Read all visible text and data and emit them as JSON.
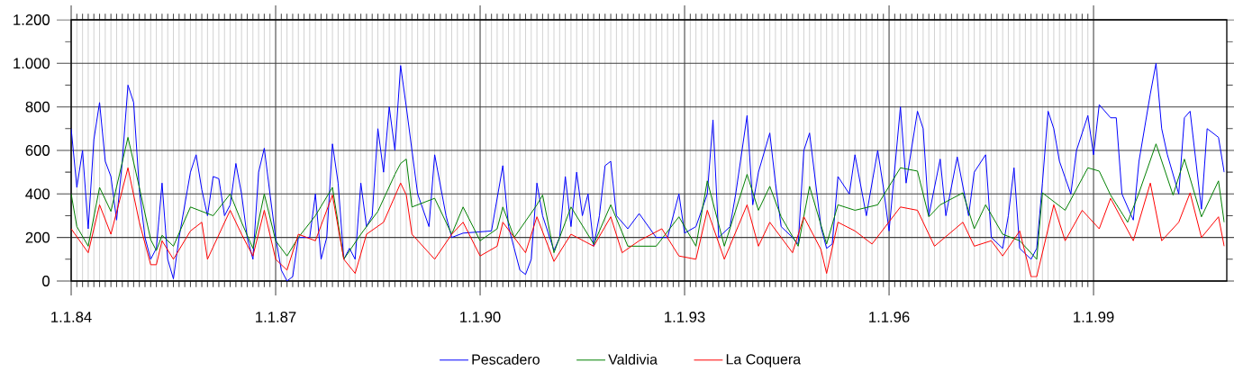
{
  "chart_data": {
    "type": "line",
    "xlim": [
      "1984-01-01",
      "2000-12-15"
    ],
    "ylim": [
      0,
      1200
    ],
    "xticks": [
      {
        "value": "1984-01-01",
        "label": "1.1.84"
      },
      {
        "value": "1987-01-01",
        "label": "1.1.87"
      },
      {
        "value": "1990-01-01",
        "label": "1.1.90"
      },
      {
        "value": "1993-01-01",
        "label": "1.1.93"
      },
      {
        "value": "1996-01-01",
        "label": "1.1.96"
      },
      {
        "value": "1999-01-01",
        "label": "1.1.99"
      }
    ],
    "yticks": [
      0,
      200,
      400,
      600,
      800,
      {
        "value": 1000,
        "label": "1.000"
      },
      {
        "value": 1200,
        "label": "1.200"
      }
    ],
    "grid": true,
    "legend": "bottom",
    "marker": "none",
    "line_style": "solid",
    "series": [
      {
        "name": "Pescadero",
        "color": "#0000ff",
        "x": [
          "1984-01",
          "1984-02",
          "1984-03",
          "1984-04",
          "1984-05",
          "1984-06",
          "1984-07",
          "1984-08",
          "1984-09",
          "1984-10",
          "1984-11",
          "1984-12",
          "1985-01",
          "1985-02",
          "1985-03",
          "1985-04",
          "1985-05",
          "1985-06",
          "1985-07",
          "1985-08",
          "1985-10",
          "1985-11",
          "1985-12",
          "1986-01",
          "1986-02",
          "1986-03",
          "1986-04",
          "1986-05",
          "1986-06",
          "1986-07",
          "1986-08",
          "1986-09",
          "1986-10",
          "1986-11",
          "1986-12",
          "1987-01",
          "1987-02",
          "1987-03",
          "1987-04",
          "1987-05",
          "1987-07",
          "1987-08",
          "1987-09",
          "1987-10",
          "1987-11",
          "1987-12",
          "1988-01",
          "1988-02",
          "1988-03",
          "1988-04",
          "1988-05",
          "1988-06",
          "1988-07",
          "1988-08",
          "1988-09",
          "1988-10",
          "1988-11",
          "1988-12",
          "1989-01",
          "1989-02",
          "1989-04",
          "1989-05",
          "1989-07",
          "1989-08",
          "1989-10",
          "1990-03",
          "1990-05",
          "1990-06",
          "1990-07",
          "1990-08",
          "1990-09",
          "1990-10",
          "1990-11",
          "1990-12",
          "1991-02",
          "1991-03",
          "1991-04",
          "1991-05",
          "1991-06",
          "1991-07",
          "1991-08",
          "1991-09",
          "1991-10",
          "1991-11",
          "1991-12",
          "1992-01",
          "1992-03",
          "1992-05",
          "1992-08",
          "1992-10",
          "1992-12",
          "1993-01",
          "1993-03",
          "1993-05",
          "1993-06",
          "1993-07",
          "1993-09",
          "1993-10",
          "1993-12",
          "1994-01",
          "1994-02",
          "1994-04",
          "1994-05",
          "1994-06",
          "1994-08",
          "1994-09",
          "1994-10",
          "1994-11",
          "1995-01",
          "1995-02",
          "1995-03",
          "1995-04",
          "1995-06",
          "1995-07",
          "1995-09",
          "1995-11",
          "1995-12",
          "1996-01",
          "1996-03",
          "1996-04",
          "1996-06",
          "1996-07",
          "1996-08",
          "1996-10",
          "1996-11",
          "1997-01",
          "1997-03",
          "1997-04",
          "1997-06",
          "1997-07",
          "1997-09",
          "1997-10",
          "1997-11",
          "1997-12",
          "1998-02",
          "1998-03",
          "1998-04",
          "1998-05",
          "1998-06",
          "1998-07",
          "1998-09",
          "1998-10",
          "1998-12",
          "1999-01",
          "1999-02",
          "1999-04",
          "1999-05",
          "1999-06",
          "1999-08",
          "1999-09",
          "1999-11",
          "1999-12",
          "2000-01",
          "2000-02",
          "2000-04",
          "2000-05",
          "2000-06",
          "2000-08",
          "2000-09",
          "2000-11",
          "2000-12"
        ],
        "values": [
          700,
          430,
          600,
          240,
          650,
          820,
          550,
          480,
          280,
          550,
          900,
          820,
          420,
          200,
          100,
          150,
          450,
          100,
          10,
          200,
          500,
          580,
          420,
          300,
          480,
          470,
          300,
          350,
          540,
          400,
          200,
          100,
          500,
          610,
          400,
          200,
          50,
          0,
          20,
          200,
          200,
          400,
          100,
          200,
          630,
          450,
          100,
          150,
          100,
          450,
          250,
          300,
          700,
          500,
          800,
          600,
          990,
          800,
          600,
          400,
          250,
          580,
          300,
          200,
          220,
          230,
          530,
          250,
          150,
          50,
          30,
          100,
          450,
          300,
          140,
          200,
          480,
          250,
          500,
          300,
          400,
          160,
          300,
          530,
          550,
          300,
          240,
          310,
          200,
          200,
          400,
          220,
          250,
          400,
          740,
          200,
          250,
          400,
          760,
          350,
          500,
          680,
          450,
          250,
          200,
          170,
          600,
          680,
          250,
          150,
          170,
          480,
          400,
          580,
          300,
          600,
          430,
          230,
          800,
          450,
          780,
          700,
          300,
          560,
          300,
          570,
          300,
          500,
          580,
          200,
          150,
          300,
          520,
          150,
          100,
          150,
          450,
          780,
          700,
          550,
          400,
          600,
          760,
          580,
          810,
          750,
          750,
          400,
          280,
          550,
          860,
          1000,
          700,
          580,
          400,
          750,
          780,
          330,
          700,
          660,
          500
        ]
      },
      {
        "name": "Valdivia",
        "color": "#008000",
        "x": [
          "1984-01",
          "1984-02",
          "1984-04",
          "1984-06",
          "1984-08",
          "1984-11",
          "1985-01",
          "1985-03",
          "1985-04",
          "1985-05",
          "1985-07",
          "1985-10",
          "1985-12",
          "1986-02",
          "1986-05",
          "1986-07",
          "1986-09",
          "1986-11",
          "1987-01",
          "1987-03",
          "1987-05",
          "1987-08",
          "1987-11",
          "1988-01",
          "1988-04",
          "1988-07",
          "1988-10",
          "1988-11",
          "1988-12",
          "1989-01",
          "1989-05",
          "1989-08",
          "1989-10",
          "1990-01",
          "1990-04",
          "1990-05",
          "1990-07",
          "1990-11",
          "1990-12",
          "1991-02",
          "1991-05",
          "1991-09",
          "1991-12",
          "1992-03",
          "1992-08",
          "1992-12",
          "1993-03",
          "1993-05",
          "1993-08",
          "1993-12",
          "1994-02",
          "1994-04",
          "1994-06",
          "1994-09",
          "1994-11",
          "1995-02",
          "1995-04",
          "1995-07",
          "1995-11",
          "1996-03",
          "1996-06",
          "1996-08",
          "1996-10",
          "1997-02",
          "1997-04",
          "1997-06",
          "1997-09",
          "1997-12",
          "1998-03",
          "1998-04",
          "1998-08",
          "1998-12",
          "1999-02",
          "1999-04",
          "1999-07",
          "1999-09",
          "1999-12",
          "2000-03",
          "2000-05",
          "2000-08",
          "2000-11",
          "2000-12"
        ],
        "values": [
          400,
          250,
          160,
          430,
          320,
          660,
          430,
          190,
          140,
          210,
          160,
          340,
          320,
          300,
          400,
          270,
          150,
          400,
          185,
          115,
          200,
          300,
          430,
          100,
          215,
          320,
          490,
          540,
          560,
          340,
          380,
          215,
          340,
          185,
          240,
          340,
          200,
          350,
          395,
          130,
          340,
          170,
          350,
          160,
          160,
          295,
          160,
          460,
          160,
          490,
          325,
          435,
          295,
          160,
          435,
          170,
          350,
          325,
          350,
          520,
          505,
          295,
          350,
          405,
          240,
          350,
          215,
          185,
          100,
          405,
          325,
          520,
          505,
          395,
          270,
          405,
          630,
          395,
          560,
          295,
          460,
          270
        ]
      },
      {
        "name": "La Coquera",
        "color": "#ff0000",
        "x": [
          "1984-01",
          "1984-04",
          "1984-06",
          "1984-08",
          "1984-11",
          "1985-01",
          "1985-03",
          "1985-04",
          "1985-05",
          "1985-07",
          "1985-10",
          "1985-12",
          "1986-01",
          "1986-05",
          "1986-07",
          "1986-09",
          "1986-11",
          "1987-01",
          "1987-03",
          "1987-05",
          "1987-08",
          "1987-11",
          "1988-01",
          "1988-03",
          "1988-05",
          "1988-08",
          "1988-11",
          "1988-12",
          "1989-01",
          "1989-05",
          "1989-08",
          "1989-10",
          "1990-01",
          "1990-04",
          "1990-05",
          "1990-09",
          "1990-11",
          "1991-02",
          "1991-05",
          "1991-09",
          "1991-12",
          "1992-02",
          "1992-05",
          "1992-09",
          "1992-12",
          "1993-03",
          "1993-05",
          "1993-08",
          "1993-12",
          "1994-02",
          "1994-04",
          "1994-08",
          "1994-10",
          "1995-01",
          "1995-02",
          "1995-04",
          "1995-07",
          "1995-10",
          "1996-03",
          "1996-06",
          "1996-09",
          "1997-02",
          "1997-04",
          "1997-07",
          "1997-09",
          "1997-12",
          "1998-02",
          "1998-03",
          "1998-06",
          "1998-08",
          "1998-11",
          "1999-02",
          "1999-04",
          "1999-08",
          "1999-11",
          "2000-01",
          "2000-04",
          "2000-06",
          "2000-08",
          "2000-11",
          "2000-12"
        ],
        "values": [
          240,
          130,
          350,
          215,
          520,
          270,
          75,
          75,
          185,
          100,
          230,
          270,
          100,
          325,
          215,
          115,
          325,
          100,
          50,
          215,
          185,
          395,
          100,
          35,
          215,
          270,
          450,
          395,
          215,
          100,
          215,
          270,
          115,
          160,
          270,
          130,
          295,
          90,
          215,
          160,
          295,
          130,
          185,
          240,
          115,
          100,
          325,
          100,
          350,
          160,
          270,
          130,
          295,
          145,
          35,
          270,
          230,
          170,
          340,
          325,
          160,
          270,
          160,
          185,
          115,
          230,
          20,
          20,
          350,
          185,
          325,
          240,
          380,
          185,
          450,
          185,
          270,
          405,
          200,
          295,
          160
        ]
      }
    ]
  }
}
